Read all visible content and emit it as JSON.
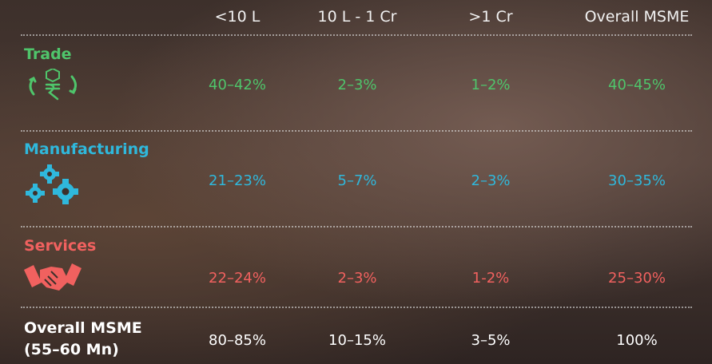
{
  "table": {
    "columns": [
      "<10  L",
      "10 L - 1 Cr",
      ">1 Cr",
      "Overall MSME"
    ],
    "rows": [
      {
        "label": "Trade",
        "cells": [
          "40–42%",
          "2–3%",
          "1–2%",
          "40–45%"
        ]
      },
      {
        "label": "Manufacturing",
        "cells": [
          "21–23%",
          "5–7%",
          "2–3%",
          "30–35%"
        ]
      },
      {
        "label": "Services",
        "cells": [
          "22–24%",
          "2–3%",
          "1-2%",
          "25–30%"
        ]
      },
      {
        "label": "Overall MSME",
        "sublabel": "(55–60 Mn)",
        "cells": [
          "80–85%",
          "10–15%",
          "3–5%",
          "100%"
        ]
      }
    ]
  }
}
